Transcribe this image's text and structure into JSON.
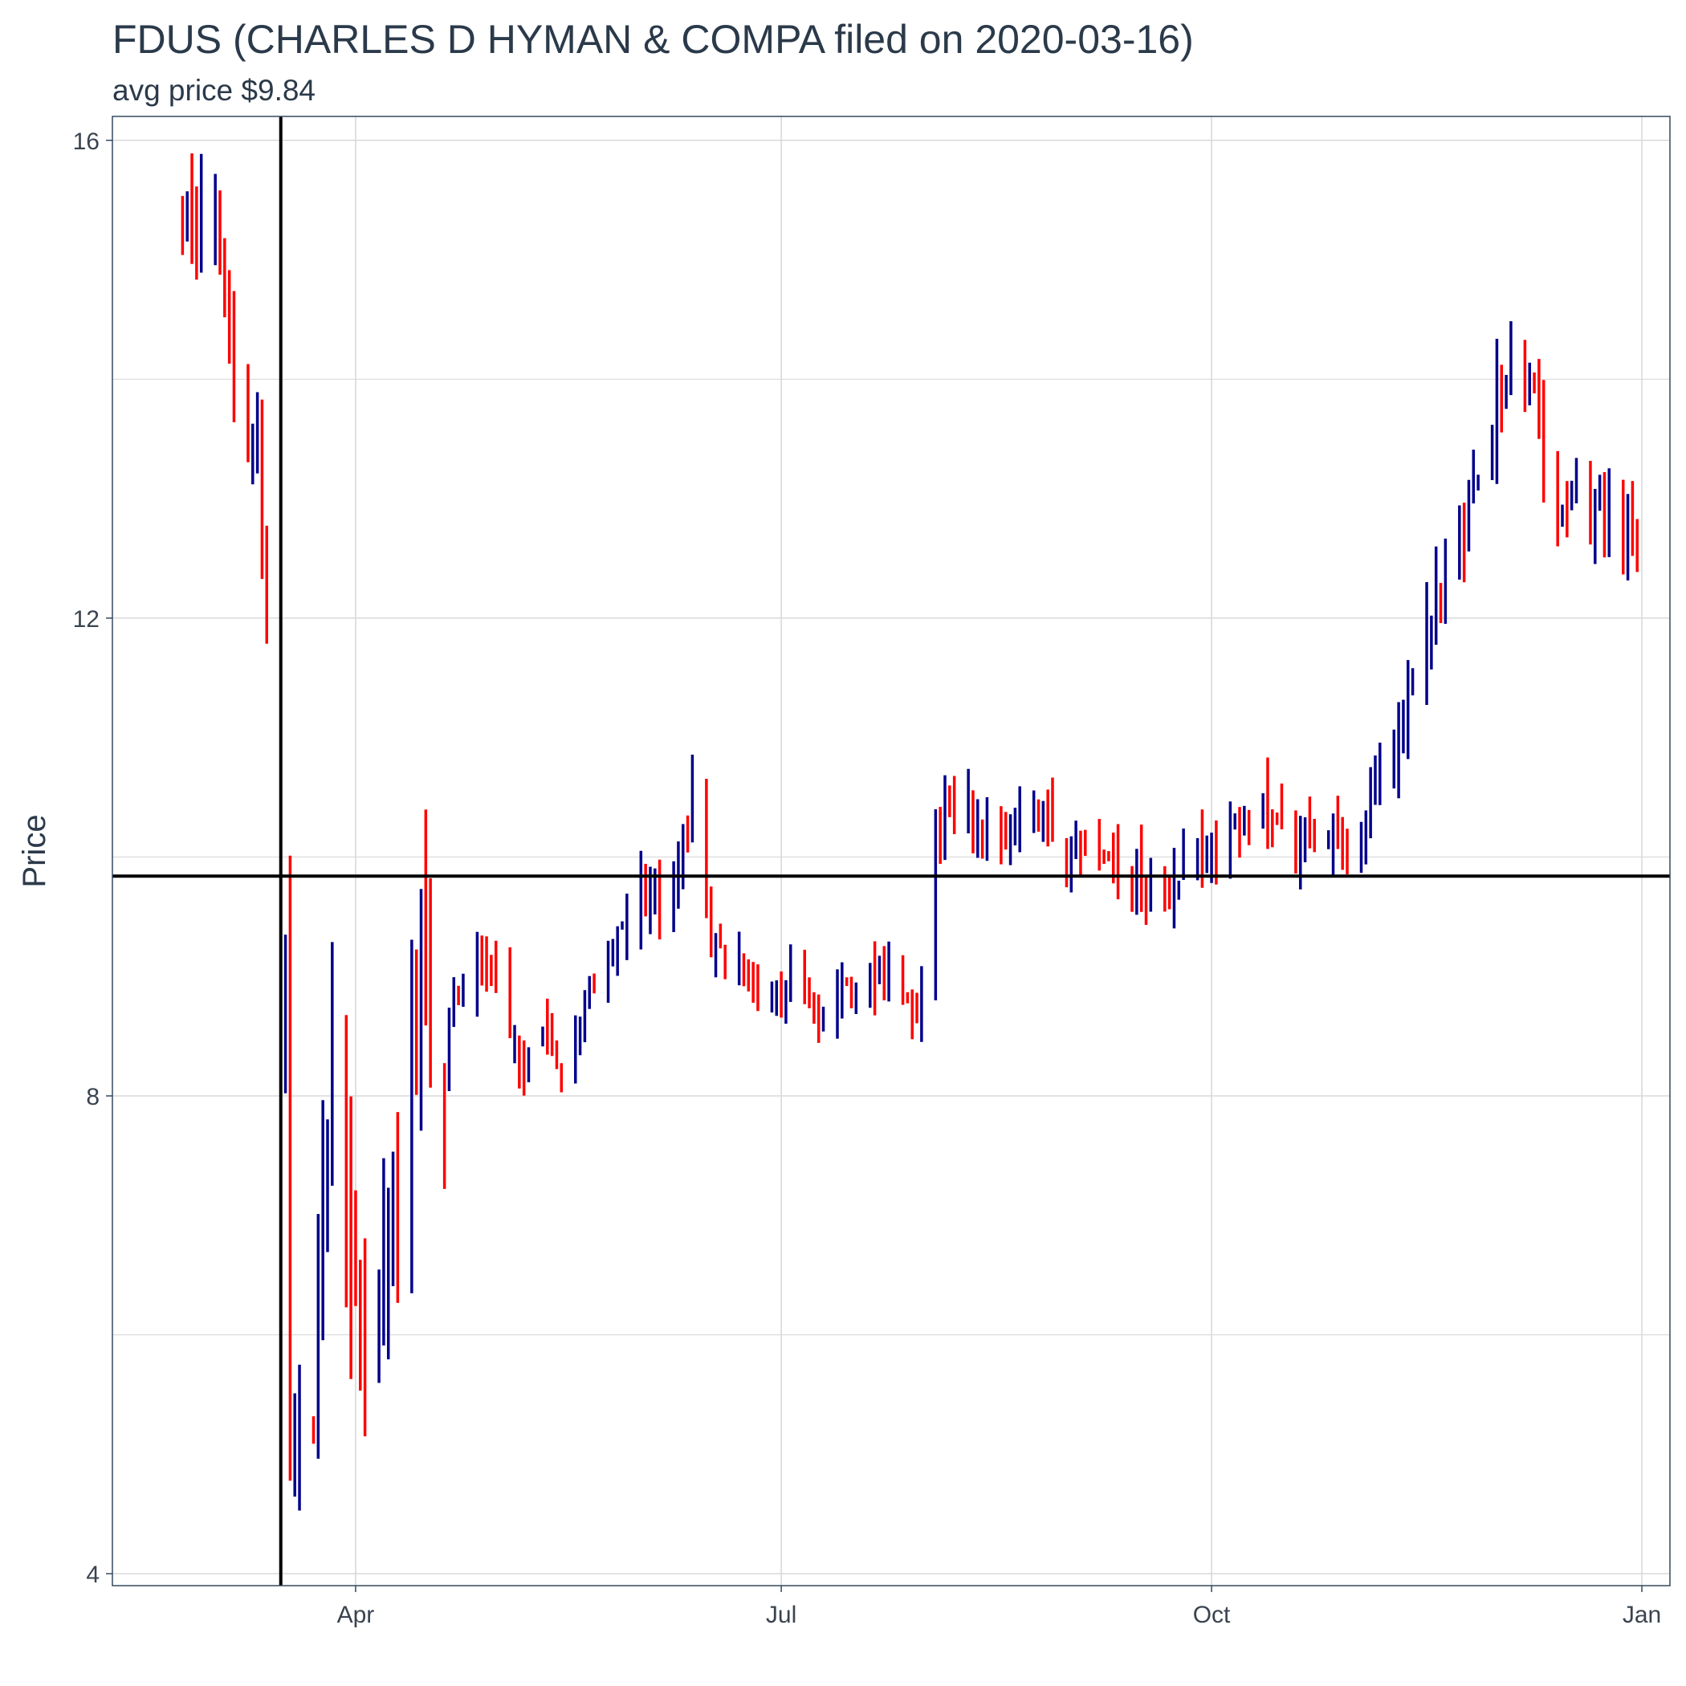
{
  "chart_data": {
    "type": "ohlc",
    "title": "FDUS (CHARLES D HYMAN & COMPA filed on 2020-03-16)",
    "subtitle": "avg price $9.84",
    "ylabel": "Price",
    "xlabel": "",
    "ylim": [
      3.9,
      16.2
    ],
    "y_ticks": [
      4,
      8,
      12,
      16
    ],
    "y_minor_ticks": [
      6,
      10,
      14
    ],
    "xlim": [
      "2020-02-09",
      "2021-01-07"
    ],
    "x_ticks": [
      {
        "date": "2020-04-01",
        "label": "Apr"
      },
      {
        "date": "2020-07-01",
        "label": "Jul"
      },
      {
        "date": "2020-10-01",
        "label": "Oct"
      },
      {
        "date": "2021-01-01",
        "label": "Jan"
      }
    ],
    "filing_date": "2020-03-16",
    "avg_price": 9.84,
    "grid": true,
    "colors": {
      "up": "#00008B",
      "down": "#FF0000",
      "grid": "#d9d9d9",
      "reference": "#000000",
      "frame": "#34495e"
    },
    "keypoints": [
      [
        "2020-02-25",
        15.4
      ],
      [
        "2020-03-02",
        15.3
      ],
      [
        "2020-03-05",
        14.2
      ],
      [
        "2020-03-08",
        13.4
      ],
      [
        "2020-03-11",
        13.5
      ],
      [
        "2020-03-13",
        12.0
      ],
      [
        "2020-03-16",
        9.0
      ],
      [
        "2020-03-17",
        9.8
      ],
      [
        "2020-03-18",
        5.0
      ],
      [
        "2020-03-23",
        5.2
      ],
      [
        "2020-03-27",
        8.3
      ],
      [
        "2020-03-30",
        7.0
      ],
      [
        "2020-04-03",
        5.6
      ],
      [
        "2020-04-09",
        7.0
      ],
      [
        "2020-04-13",
        8.5
      ],
      [
        "2020-04-17",
        8.7
      ],
      [
        "2020-04-22",
        8.7
      ],
      [
        "2020-04-27",
        9.4
      ],
      [
        "2020-05-02",
        8.8
      ],
      [
        "2020-05-07",
        8.2
      ],
      [
        "2020-05-12",
        8.6
      ],
      [
        "2020-05-15",
        8.1
      ],
      [
        "2020-05-20",
        8.8
      ],
      [
        "2020-05-26",
        9.2
      ],
      [
        "2020-06-01",
        9.8
      ],
      [
        "2020-06-05",
        9.6
      ],
      [
        "2020-06-09",
        10.0
      ],
      [
        "2020-06-12",
        10.6
      ],
      [
        "2020-06-16",
        9.3
      ],
      [
        "2020-06-22",
        9.1
      ],
      [
        "2020-06-26",
        8.9
      ],
      [
        "2020-07-01",
        9.0
      ],
      [
        "2020-07-06",
        8.8
      ],
      [
        "2020-07-10",
        8.7
      ],
      [
        "2020-07-15",
        8.9
      ],
      [
        "2020-07-20",
        9.0
      ],
      [
        "2020-07-24",
        9.0
      ],
      [
        "2020-07-29",
        8.7
      ],
      [
        "2020-07-31",
        8.8
      ],
      [
        "2020-08-03",
        10.3
      ],
      [
        "2020-08-07",
        10.5
      ],
      [
        "2020-08-12",
        10.3
      ],
      [
        "2020-08-18",
        10.25
      ],
      [
        "2020-08-24",
        10.35
      ],
      [
        "2020-08-29",
        10.1
      ],
      [
        "2020-09-03",
        10.0
      ],
      [
        "2020-09-10",
        9.95
      ],
      [
        "2020-09-16",
        9.8
      ],
      [
        "2020-09-21",
        9.6
      ],
      [
        "2020-09-24",
        9.9
      ],
      [
        "2020-10-01",
        10.05
      ],
      [
        "2020-10-06",
        10.35
      ],
      [
        "2020-10-13",
        10.35
      ],
      [
        "2020-10-20",
        10.1
      ],
      [
        "2020-10-27",
        10.25
      ],
      [
        "2020-11-02",
        10.1
      ],
      [
        "2020-11-05",
        10.6
      ],
      [
        "2020-11-09",
        10.9
      ],
      [
        "2020-11-13",
        11.6
      ],
      [
        "2020-11-18",
        12.2
      ],
      [
        "2020-11-24",
        12.8
      ],
      [
        "2020-11-27",
        13.0
      ],
      [
        "2020-12-01",
        13.9
      ],
      [
        "2020-12-07",
        14.1
      ],
      [
        "2020-12-09",
        14.0
      ],
      [
        "2020-12-11",
        13.3
      ],
      [
        "2020-12-15",
        12.9
      ],
      [
        "2020-12-21",
        12.8
      ],
      [
        "2020-12-27",
        12.7
      ],
      [
        "2020-12-30",
        12.75
      ]
    ]
  }
}
